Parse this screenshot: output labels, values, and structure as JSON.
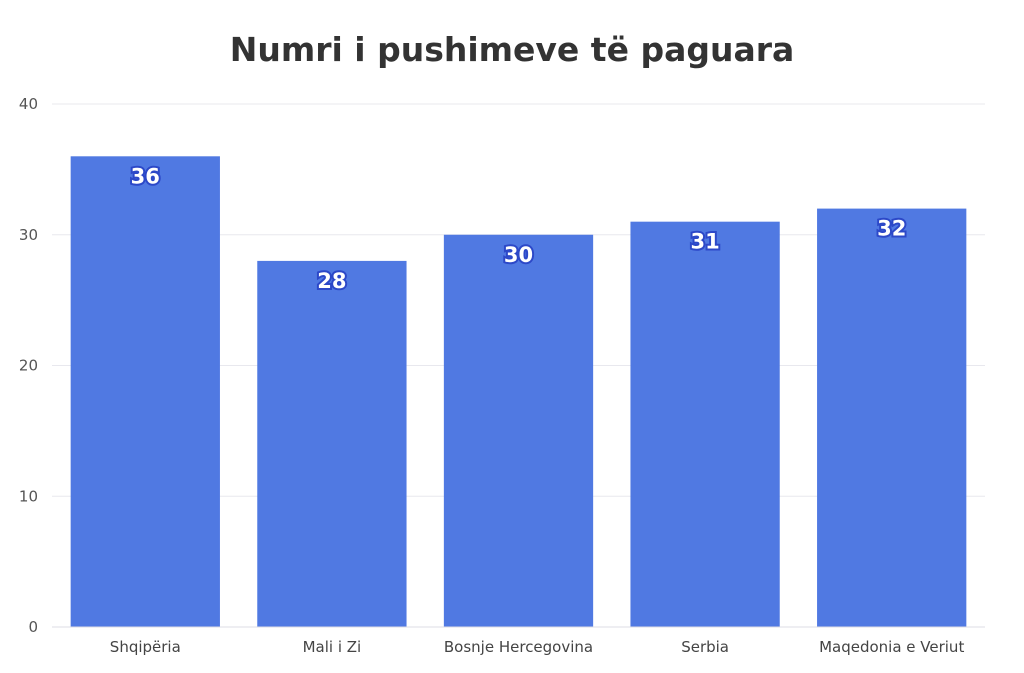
{
  "chart_data": {
    "type": "bar",
    "title": "Numri i pushimeve të paguara",
    "xlabel": "",
    "ylabel": "",
    "categories": [
      "Shqipëria",
      "Mali i Zi",
      "Bosnje Hercegovina",
      "Serbia",
      "Maqedonia e Veriut"
    ],
    "values": [
      36,
      28,
      30,
      31,
      32
    ],
    "ylim": [
      0,
      40
    ],
    "yticks": [
      "0",
      "10",
      "20",
      "30",
      "40"
    ],
    "grid": true,
    "legend": "none",
    "data_labels": true,
    "colors": {
      "bar": "#5079e2",
      "label_outline": "#2c48c8",
      "grid": "#e8e8ee"
    }
  }
}
